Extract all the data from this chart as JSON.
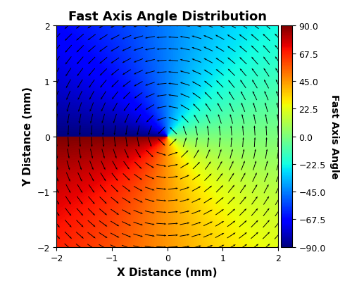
{
  "title": "Fast Axis Angle Distribution",
  "xlabel": "X Distance (mm)",
  "ylabel": "Y Distance (mm)",
  "colorbar_label": "Fast Axis Angle",
  "colorbar_ticks": [
    90.0,
    67.5,
    45.0,
    22.5,
    0.0,
    -22.5,
    -45.0,
    -67.5,
    -90.0
  ],
  "xlim": [
    -2,
    2
  ],
  "ylim": [
    -2,
    2
  ],
  "n_grid": 400,
  "n_quiver": 20,
  "quiver_scale": 22,
  "cmap": "jet",
  "vmin": -90,
  "vmax": 90,
  "figsize": [
    5.0,
    4.1
  ],
  "dpi": 100,
  "title_fontsize": 13,
  "label_fontsize": 11,
  "colorbar_label_fontsize": 10,
  "tick_fontsize": 9
}
